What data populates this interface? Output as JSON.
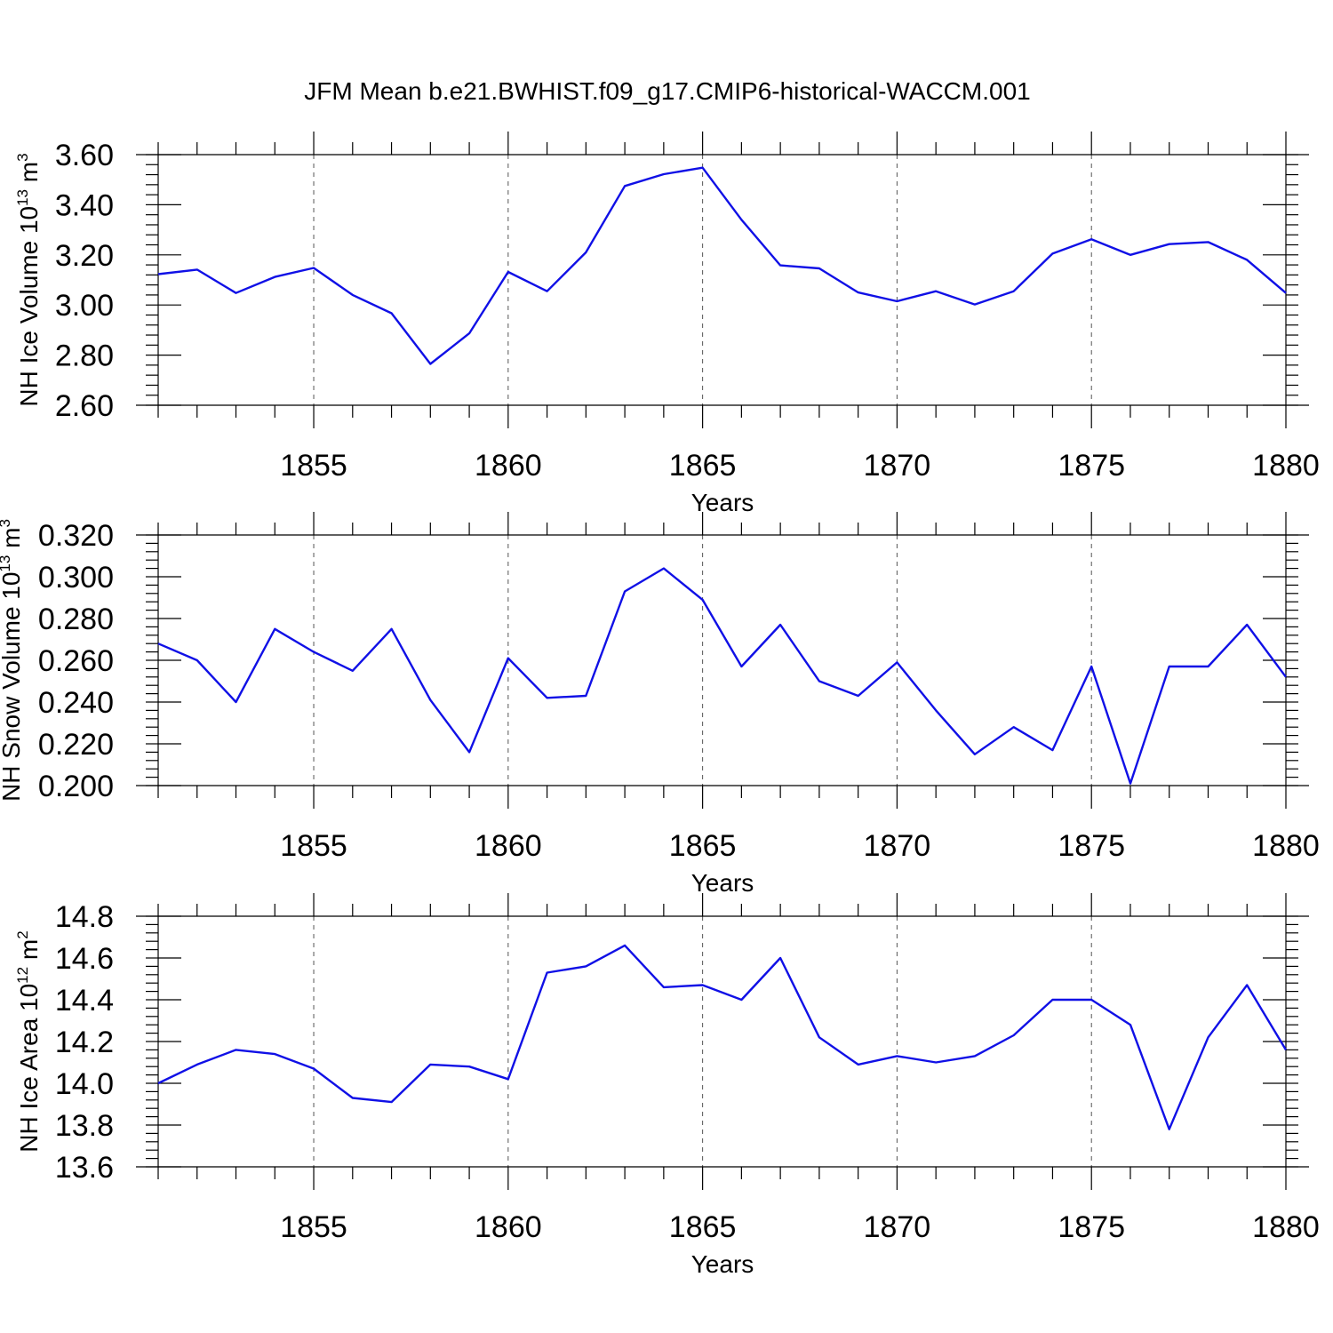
{
  "figure_title": "JFM Mean b.e21.BWHIST.f09_g17.CMIP6-historical-WACCM.001",
  "line_color": "#1010e6",
  "chart_data": [
    {
      "type": "line",
      "ylabel": "NH Ice Volume 10",
      "ylabel_sup": "13",
      "ylabel_unit": " m",
      "ylabel_unit_sup": "3",
      "xlabel": "Years",
      "xlim": [
        1851,
        1880
      ],
      "ylim": [
        2.6,
        3.6
      ],
      "y_major_ticks": [
        2.6,
        2.8,
        3.0,
        3.2,
        3.4,
        3.6
      ],
      "y_tick_labels": [
        "2.60",
        "2.80",
        "3.00",
        "3.20",
        "3.40",
        "3.60"
      ],
      "y_minor_step": 0.04,
      "x_major_ticks": [
        1855,
        1860,
        1865,
        1870,
        1875,
        1880
      ],
      "x_tick_labels": [
        "1855",
        "1860",
        "1865",
        "1870",
        "1875",
        "1880"
      ],
      "grid": "vertical dashed at major x ticks",
      "x": [
        1851,
        1852,
        1853,
        1854,
        1855,
        1856,
        1857,
        1858,
        1859,
        1860,
        1861,
        1862,
        1863,
        1864,
        1865,
        1866,
        1867,
        1868,
        1869,
        1870,
        1871,
        1872,
        1873,
        1874,
        1875,
        1876,
        1877,
        1878,
        1879,
        1880
      ],
      "values": [
        3.123,
        3.141,
        3.048,
        3.112,
        3.148,
        3.04,
        2.967,
        2.765,
        2.887,
        3.132,
        3.055,
        3.21,
        3.475,
        3.522,
        3.548,
        3.34,
        3.158,
        3.146,
        3.05,
        3.015,
        3.055,
        3.002,
        3.055,
        3.205,
        3.262,
        3.2,
        3.243,
        3.251,
        3.18,
        3.048
      ]
    },
    {
      "type": "line",
      "ylabel": "NH Snow Volume 10",
      "ylabel_sup": "13",
      "ylabel_unit": " m",
      "ylabel_unit_sup": "3",
      "xlabel": "Years",
      "xlim": [
        1851,
        1880
      ],
      "ylim": [
        0.2,
        0.32
      ],
      "y_major_ticks": [
        0.2,
        0.22,
        0.24,
        0.26,
        0.28,
        0.3,
        0.32
      ],
      "y_tick_labels": [
        "0.200",
        "0.220",
        "0.240",
        "0.260",
        "0.280",
        "0.300",
        "0.320"
      ],
      "y_minor_step": 0.004,
      "x_major_ticks": [
        1855,
        1860,
        1865,
        1870,
        1875,
        1880
      ],
      "x_tick_labels": [
        "1855",
        "1860",
        "1865",
        "1870",
        "1875",
        "1880"
      ],
      "grid": "vertical dashed at major x ticks",
      "x": [
        1851,
        1852,
        1853,
        1854,
        1855,
        1856,
        1857,
        1858,
        1859,
        1860,
        1861,
        1862,
        1863,
        1864,
        1865,
        1866,
        1867,
        1868,
        1869,
        1870,
        1871,
        1872,
        1873,
        1874,
        1875,
        1876,
        1877,
        1878,
        1879,
        1880
      ],
      "values": [
        0.268,
        0.26,
        0.24,
        0.275,
        0.264,
        0.255,
        0.275,
        0.241,
        0.216,
        0.261,
        0.242,
        0.243,
        0.293,
        0.304,
        0.289,
        0.257,
        0.277,
        0.25,
        0.243,
        0.259,
        0.236,
        0.215,
        0.228,
        0.217,
        0.257,
        0.201,
        0.257,
        0.257,
        0.277,
        0.252
      ]
    },
    {
      "type": "line",
      "ylabel": "NH Ice Area 10",
      "ylabel_sup": "12",
      "ylabel_unit": " m",
      "ylabel_unit_sup": "2",
      "xlabel": "Years",
      "xlim": [
        1851,
        1880
      ],
      "ylim": [
        13.6,
        14.8
      ],
      "y_major_ticks": [
        13.6,
        13.8,
        14.0,
        14.2,
        14.4,
        14.6,
        14.8
      ],
      "y_tick_labels": [
        "13.6",
        "13.8",
        "14.0",
        "14.2",
        "14.4",
        "14.6",
        "14.8"
      ],
      "y_minor_step": 0.04,
      "x_major_ticks": [
        1855,
        1860,
        1865,
        1870,
        1875,
        1880
      ],
      "x_tick_labels": [
        "1855",
        "1860",
        "1865",
        "1870",
        "1875",
        "1880"
      ],
      "grid": "vertical dashed at major x ticks",
      "x": [
        1851,
        1852,
        1853,
        1854,
        1855,
        1856,
        1857,
        1858,
        1859,
        1860,
        1861,
        1862,
        1863,
        1864,
        1865,
        1866,
        1867,
        1868,
        1869,
        1870,
        1871,
        1872,
        1873,
        1874,
        1875,
        1876,
        1877,
        1878,
        1879,
        1880
      ],
      "values": [
        14.0,
        14.09,
        14.16,
        14.14,
        14.07,
        13.93,
        13.91,
        14.09,
        14.08,
        14.02,
        14.53,
        14.56,
        14.66,
        14.46,
        14.47,
        14.4,
        14.6,
        14.22,
        14.09,
        14.13,
        14.1,
        14.13,
        14.23,
        14.4,
        14.4,
        14.28,
        13.78,
        14.22,
        14.47,
        14.16
      ]
    }
  ]
}
